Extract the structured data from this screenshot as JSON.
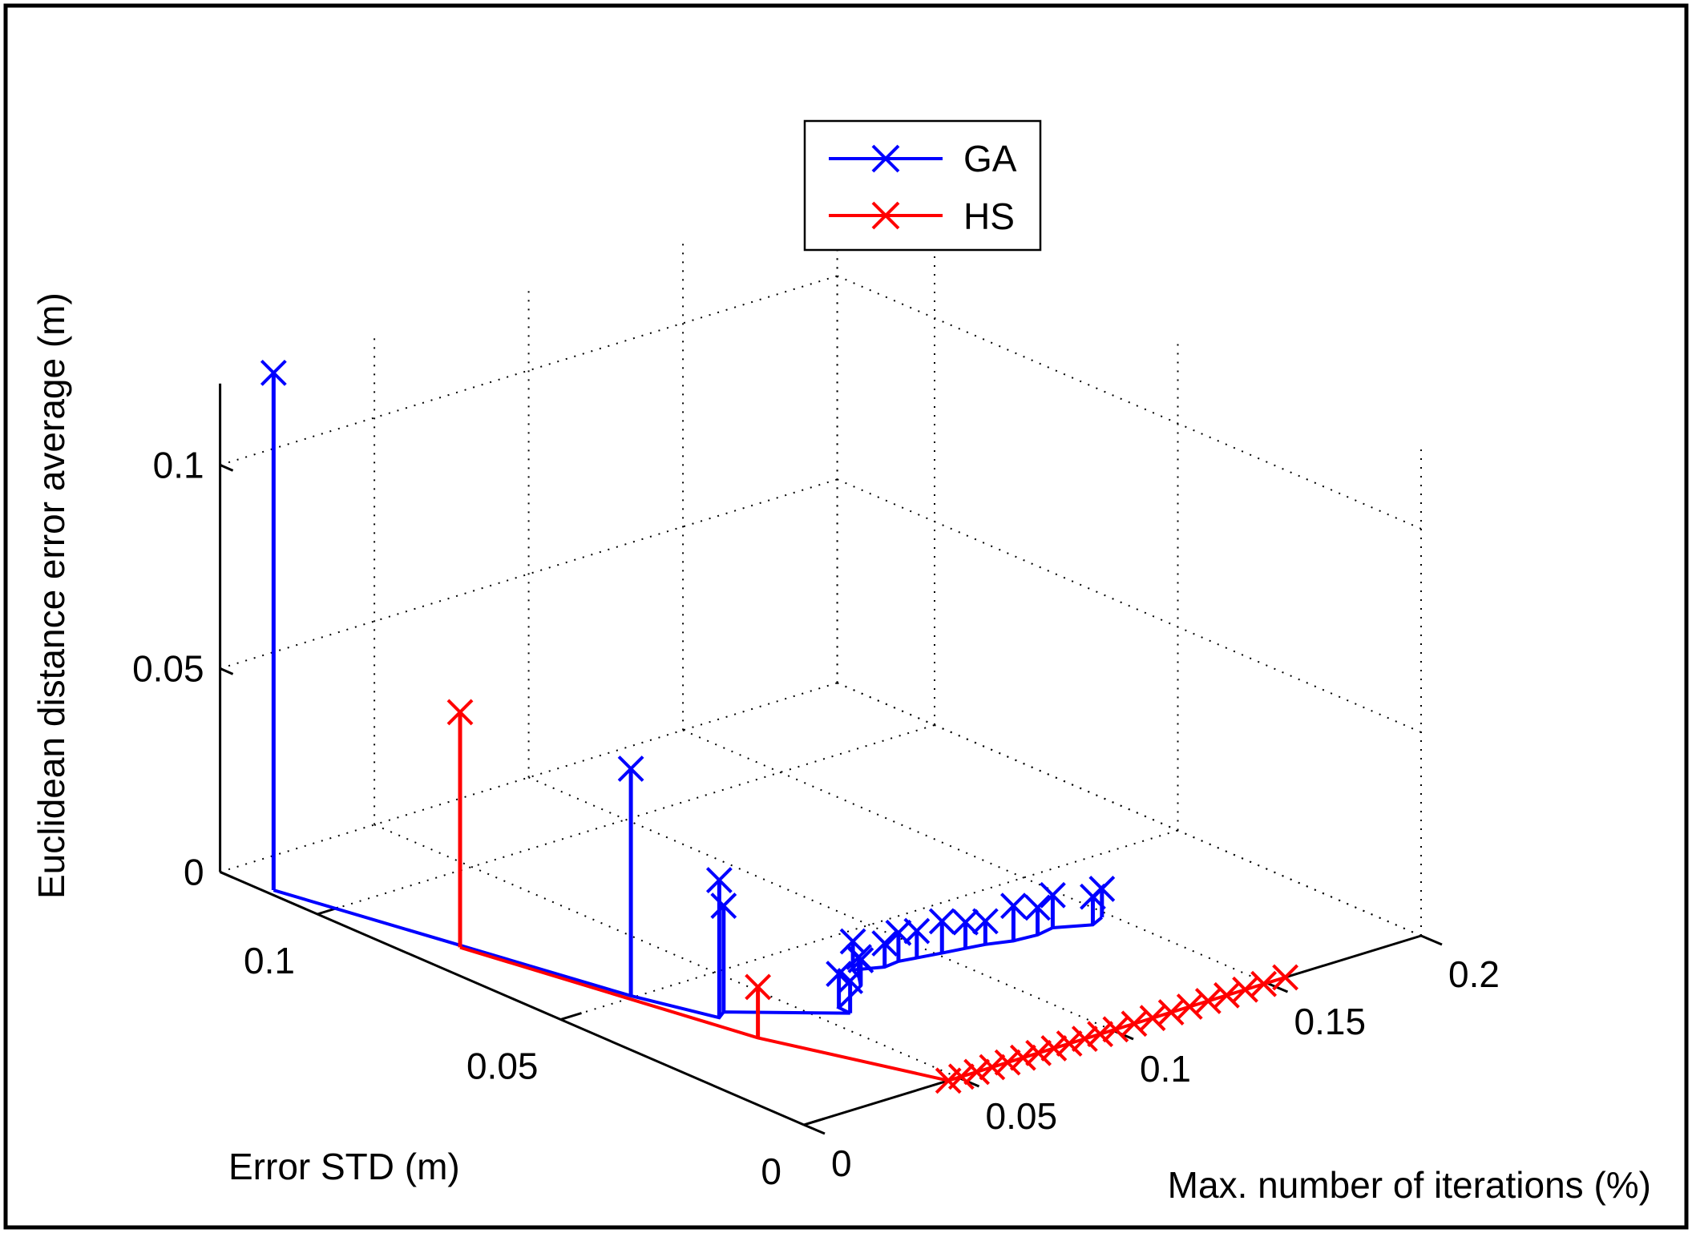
{
  "chart_data": {
    "type": "line",
    "projection": "3d",
    "title": "",
    "xlabel": "Max. number of iterations (%)",
    "ylabel": "Error STD (m)",
    "zlabel": "Euclidean distance error average (m)",
    "x_ticks": [
      "0",
      "0.05",
      "0.1",
      "0.15",
      "0.2"
    ],
    "y_ticks": [
      "0",
      "0.05",
      "0.1"
    ],
    "z_ticks": [
      "0",
      "0.05",
      "0.1"
    ],
    "xlim": [
      0,
      0.2
    ],
    "ylim": [
      0,
      0.12
    ],
    "zlim": [
      0,
      0.12
    ],
    "grid": true,
    "legend_position": "top-center",
    "stems": true,
    "series": [
      {
        "name": "GA",
        "color": "#0000ff",
        "marker": "x",
        "points": [
          [
            0.0022,
            0.1104,
            0.1271
          ],
          [
            0.0237,
            0.0506,
            0.0558
          ],
          [
            0.0309,
            0.037,
            0.0338
          ],
          [
            0.0342,
            0.0382,
            0.0261
          ],
          [
            0.0577,
            0.0271,
            0.0079
          ],
          [
            0.058,
            0.0296,
            0.0083
          ],
          [
            0.0717,
            0.0338,
            0.0063
          ],
          [
            0.0752,
            0.0364,
            0.0049
          ],
          [
            0.0772,
            0.0389,
            0.007
          ],
          [
            0.0845,
            0.037,
            0.0058
          ],
          [
            0.0896,
            0.0374,
            0.007
          ],
          [
            0.0946,
            0.0368,
            0.0066
          ],
          [
            0.1015,
            0.036,
            0.0078
          ],
          [
            0.108,
            0.0353,
            0.0064
          ],
          [
            0.1135,
            0.0347,
            0.0057
          ],
          [
            0.1204,
            0.0333,
            0.0086
          ],
          [
            0.1276,
            0.0329,
            0.0067
          ],
          [
            0.1336,
            0.0336,
            0.008
          ],
          [
            0.1425,
            0.031,
            0.0069
          ],
          [
            0.1475,
            0.0323,
            0.007
          ]
        ]
      },
      {
        "name": "HS",
        "color": "#ff0000",
        "marker": "x",
        "points": [
          [
            0.0125,
            0.0786,
            0.0578
          ],
          [
            0.0294,
            0.0281,
            0.0125
          ],
          [
            0.0468,
            0.0,
            0.0
          ],
          [
            0.051,
            0.0,
            0.0
          ],
          [
            0.056,
            0.0,
            0.0
          ],
          [
            0.061,
            0.0,
            0.0
          ],
          [
            0.066,
            0.0,
            0.0
          ],
          [
            0.071,
            0.0,
            0.0
          ],
          [
            0.076,
            0.0,
            0.0
          ],
          [
            0.081,
            0.0,
            0.0
          ],
          [
            0.086,
            0.0,
            0.0
          ],
          [
            0.091,
            0.0,
            0.0
          ],
          [
            0.096,
            0.0,
            0.0
          ],
          [
            0.101,
            0.0,
            0.0
          ],
          [
            0.107,
            0.0,
            0.0
          ],
          [
            0.113,
            0.0,
            0.0
          ],
          [
            0.119,
            0.0,
            0.0
          ],
          [
            0.125,
            0.0,
            0.0
          ],
          [
            0.131,
            0.0,
            0.0
          ],
          [
            0.137,
            0.0,
            0.0
          ],
          [
            0.143,
            0.0,
            0.0
          ],
          [
            0.149,
            0.0,
            0.0
          ],
          [
            0.156,
            0.0,
            0.0
          ]
        ]
      }
    ]
  }
}
